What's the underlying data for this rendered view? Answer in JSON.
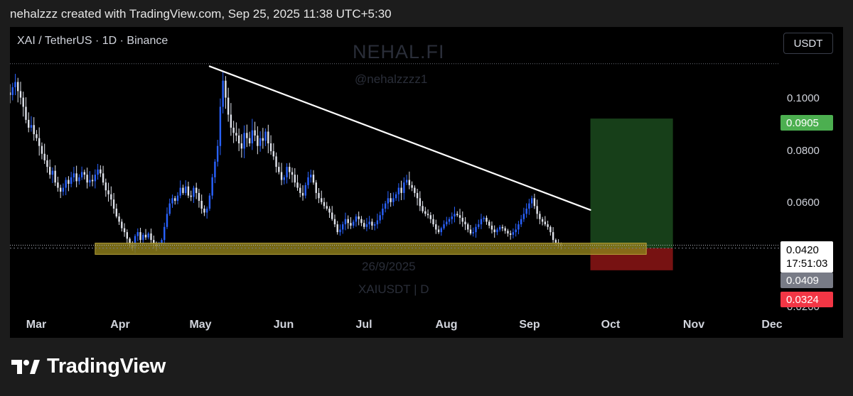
{
  "caption": "nehalzzz created with TradingView.com, Sep 25, 2025 11:38 UTC+5:30",
  "symbol_title": "XAI / TetherUS · 1D · Binance",
  "currency": "USDT",
  "watermarks": {
    "brand": "NEHAL.FI",
    "handle": "@nehalzzzz1",
    "date": "26/9/2025",
    "symbol": "XAIUSDT | D"
  },
  "footer_brand": "TradingView",
  "colors": {
    "background": "#000000",
    "candle_up": "#2962ff",
    "candle_down": "#e0e3eb",
    "support_zone": "#8a7a1a",
    "target_zone": "#2e7d32",
    "stop_zone": "#b71c1c",
    "badge_target": "#4caf50",
    "badge_stop": "#f23645",
    "badge_entry": "#787b86"
  },
  "chart_data": {
    "type": "candlestick",
    "symbol": "XAI / TetherUS",
    "timeframe": "1D",
    "exchange": "Binance",
    "x_tick_labels": [
      "Mar",
      "Apr",
      "May",
      "Jun",
      "Jul",
      "Aug",
      "Sep",
      "Oct",
      "Nov",
      "Dec"
    ],
    "y_tick_labels": [
      "0.1000",
      "0.0800",
      "0.0600",
      "0.0200"
    ],
    "y_ticks": [
      0.1,
      0.08,
      0.06,
      0.02
    ],
    "ylim": [
      0.0185,
      0.1185
    ],
    "x_range": [
      "2025-02-24",
      "2025-12-08"
    ],
    "price_labels": {
      "current": "0.0420",
      "countdown": "17:51:03",
      "entry": "0.0409",
      "target": "0.0905",
      "stop": "0.0324"
    },
    "prices": {
      "current": 0.042,
      "entry": 0.0409,
      "target": 0.0905,
      "stop": 0.0324
    },
    "support_zone": {
      "low": 0.0385,
      "high": 0.0428,
      "start": "2025-03-28",
      "end": "2025-10-21"
    },
    "trendline": {
      "start": {
        "date": "2025-05-10",
        "price": 0.1105
      },
      "end": {
        "date": "2025-09-30",
        "price": 0.0555
      }
    },
    "position": {
      "start": "2025-09-30",
      "end": "2025-10-31",
      "entry": 0.0409,
      "target": 0.0905,
      "stop": 0.0324
    },
    "high_marker": 0.1115,
    "closes": [
      0.0995,
      0.1025,
      0.1045,
      0.101,
      0.0985,
      0.095,
      0.09,
      0.087,
      0.088,
      0.0845,
      0.083,
      0.08,
      0.077,
      0.0745,
      0.072,
      0.069,
      0.0705,
      0.066,
      0.064,
      0.0625,
      0.064,
      0.067,
      0.0655,
      0.068,
      0.0695,
      0.0665,
      0.068,
      0.07,
      0.069,
      0.066,
      0.067,
      0.0665,
      0.069,
      0.071,
      0.0695,
      0.066,
      0.063,
      0.0615,
      0.0595,
      0.056,
      0.053,
      0.051,
      0.0485,
      0.047,
      0.0445,
      0.042,
      0.041,
      0.0455,
      0.047,
      0.044,
      0.046,
      0.045,
      0.0465,
      0.044,
      0.0425,
      0.0415,
      0.0425,
      0.044,
      0.049,
      0.054,
      0.058,
      0.06,
      0.059,
      0.061,
      0.064,
      0.062,
      0.0645,
      0.061,
      0.0605,
      0.064,
      0.062,
      0.059,
      0.056,
      0.0545,
      0.056,
      0.061,
      0.068,
      0.074,
      0.08,
      0.095,
      0.105,
      0.0985,
      0.092,
      0.087,
      0.085,
      0.084,
      0.081,
      0.079,
      0.085,
      0.083,
      0.081,
      0.086,
      0.084,
      0.08,
      0.083,
      0.082,
      0.0855,
      0.081,
      0.078,
      0.076,
      0.072,
      0.07,
      0.067,
      0.068,
      0.072,
      0.07,
      0.069,
      0.066,
      0.064,
      0.062,
      0.061,
      0.065,
      0.068,
      0.069,
      0.066,
      0.062,
      0.06,
      0.0585,
      0.057,
      0.056,
      0.0545,
      0.052,
      0.05,
      0.047,
      0.048,
      0.05,
      0.052,
      0.0505,
      0.0495,
      0.051,
      0.053,
      0.052,
      0.0505,
      0.049,
      0.05,
      0.051,
      0.0495,
      0.05,
      0.0515,
      0.0535,
      0.056,
      0.058,
      0.06,
      0.0585,
      0.06,
      0.0615,
      0.064,
      0.062,
      0.066,
      0.067,
      0.065,
      0.064,
      0.062,
      0.06,
      0.057,
      0.055,
      0.054,
      0.0535,
      0.052,
      0.05,
      0.048,
      0.047,
      0.0485,
      0.05,
      0.051,
      0.052,
      0.053,
      0.054,
      0.0535,
      0.0525,
      0.051,
      0.05,
      0.048,
      0.0465,
      0.047,
      0.049,
      0.05,
      0.052,
      0.0525,
      0.051,
      0.0495,
      0.048,
      0.047,
      0.048,
      0.049,
      0.0485,
      0.0475,
      0.0465,
      0.046,
      0.047,
      0.048,
      0.05,
      0.052,
      0.054,
      0.056,
      0.058,
      0.06,
      0.057,
      0.054,
      0.052,
      0.051,
      0.05,
      0.049,
      0.047,
      0.044,
      0.043,
      0.0425,
      0.042
    ]
  }
}
